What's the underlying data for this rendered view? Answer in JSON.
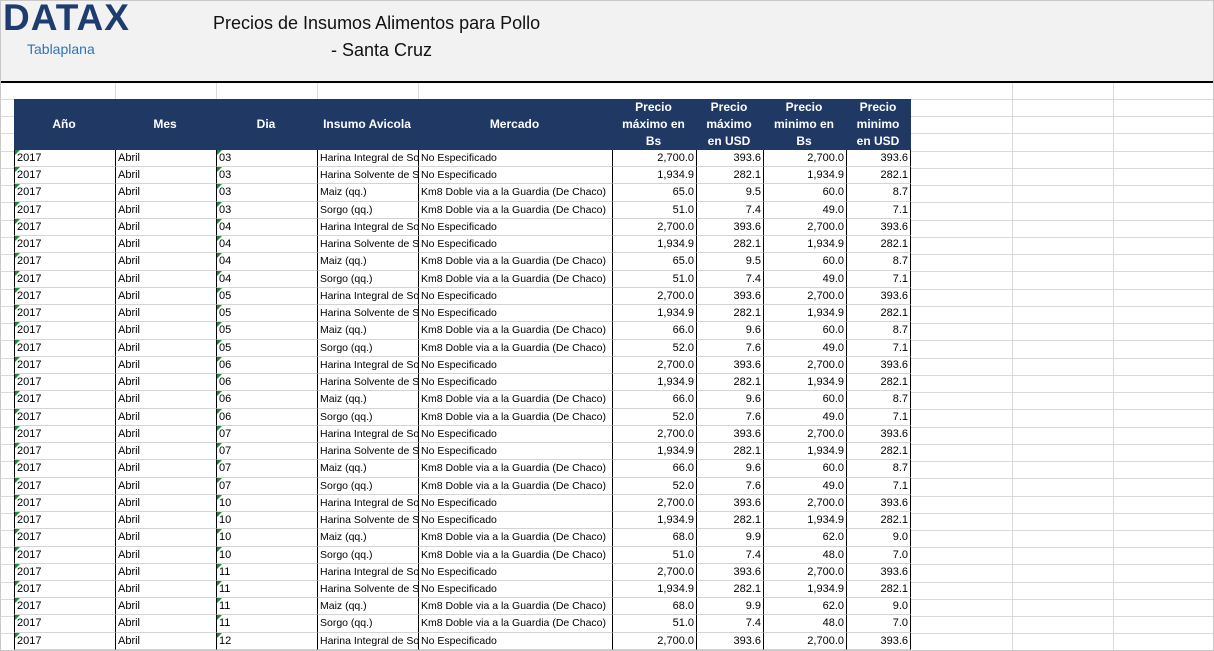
{
  "header": {
    "logo": "DATAX",
    "logo_subtitle": "Tablaplana",
    "title_line1": "Precios de Insumos Alimentos para Pollo",
    "title_line2": "- Santa Cruz"
  },
  "table": {
    "columns": [
      "Año",
      "Mes",
      "Dia",
      "Insumo Avicola",
      "Mercado",
      "Precio máximo en Bs",
      "Precio máximo en USD",
      "Precio minimo en Bs",
      "Precio minimo en USD"
    ],
    "rows": [
      [
        "2017",
        "Abril",
        "03",
        "Harina Integral de So",
        "No Especificado",
        "2,700.0",
        "393.6",
        "2,700.0",
        "393.6"
      ],
      [
        "2017",
        "Abril",
        "03",
        "Harina Solvente de S",
        "No Especificado",
        "1,934.9",
        "282.1",
        "1,934.9",
        "282.1"
      ],
      [
        "2017",
        "Abril",
        "03",
        "Maiz (qq.)",
        "Km8 Doble via a la Guardia (De Chaco)",
        "65.0",
        "9.5",
        "60.0",
        "8.7"
      ],
      [
        "2017",
        "Abril",
        "03",
        "Sorgo (qq.)",
        "Km8 Doble via a la Guardia (De Chaco)",
        "51.0",
        "7.4",
        "49.0",
        "7.1"
      ],
      [
        "2017",
        "Abril",
        "04",
        "Harina Integral de So",
        "No Especificado",
        "2,700.0",
        "393.6",
        "2,700.0",
        "393.6"
      ],
      [
        "2017",
        "Abril",
        "04",
        "Harina Solvente de S",
        "No Especificado",
        "1,934.9",
        "282.1",
        "1,934.9",
        "282.1"
      ],
      [
        "2017",
        "Abril",
        "04",
        "Maiz (qq.)",
        "Km8 Doble via a la Guardia (De Chaco)",
        "65.0",
        "9.5",
        "60.0",
        "8.7"
      ],
      [
        "2017",
        "Abril",
        "04",
        "Sorgo (qq.)",
        "Km8 Doble via a la Guardia (De Chaco)",
        "51.0",
        "7.4",
        "49.0",
        "7.1"
      ],
      [
        "2017",
        "Abril",
        "05",
        "Harina Integral de So",
        "No Especificado",
        "2,700.0",
        "393.6",
        "2,700.0",
        "393.6"
      ],
      [
        "2017",
        "Abril",
        "05",
        "Harina Solvente de S",
        "No Especificado",
        "1,934.9",
        "282.1",
        "1,934.9",
        "282.1"
      ],
      [
        "2017",
        "Abril",
        "05",
        "Maiz (qq.)",
        "Km8 Doble via a la Guardia (De Chaco)",
        "66.0",
        "9.6",
        "60.0",
        "8.7"
      ],
      [
        "2017",
        "Abril",
        "05",
        "Sorgo (qq.)",
        "Km8 Doble via a la Guardia (De Chaco)",
        "52.0",
        "7.6",
        "49.0",
        "7.1"
      ],
      [
        "2017",
        "Abril",
        "06",
        "Harina Integral de So",
        "No Especificado",
        "2,700.0",
        "393.6",
        "2,700.0",
        "393.6"
      ],
      [
        "2017",
        "Abril",
        "06",
        "Harina Solvente de S",
        "No Especificado",
        "1,934.9",
        "282.1",
        "1,934.9",
        "282.1"
      ],
      [
        "2017",
        "Abril",
        "06",
        "Maiz (qq.)",
        "Km8 Doble via a la Guardia (De Chaco)",
        "66.0",
        "9.6",
        "60.0",
        "8.7"
      ],
      [
        "2017",
        "Abril",
        "06",
        "Sorgo (qq.)",
        "Km8 Doble via a la Guardia (De Chaco)",
        "52.0",
        "7.6",
        "49.0",
        "7.1"
      ],
      [
        "2017",
        "Abril",
        "07",
        "Harina Integral de So",
        "No Especificado",
        "2,700.0",
        "393.6",
        "2,700.0",
        "393.6"
      ],
      [
        "2017",
        "Abril",
        "07",
        "Harina Solvente de S",
        "No Especificado",
        "1,934.9",
        "282.1",
        "1,934.9",
        "282.1"
      ],
      [
        "2017",
        "Abril",
        "07",
        "Maiz (qq.)",
        "Km8 Doble via a la Guardia (De Chaco)",
        "66.0",
        "9.6",
        "60.0",
        "8.7"
      ],
      [
        "2017",
        "Abril",
        "07",
        "Sorgo (qq.)",
        "Km8 Doble via a la Guardia (De Chaco)",
        "52.0",
        "7.6",
        "49.0",
        "7.1"
      ],
      [
        "2017",
        "Abril",
        "10",
        "Harina Integral de So",
        "No Especificado",
        "2,700.0",
        "393.6",
        "2,700.0",
        "393.6"
      ],
      [
        "2017",
        "Abril",
        "10",
        "Harina Solvente de S",
        "No Especificado",
        "1,934.9",
        "282.1",
        "1,934.9",
        "282.1"
      ],
      [
        "2017",
        "Abril",
        "10",
        "Maiz (qq.)",
        "Km8 Doble via a la Guardia (De Chaco)",
        "68.0",
        "9.9",
        "62.0",
        "9.0"
      ],
      [
        "2017",
        "Abril",
        "10",
        "Sorgo (qq.)",
        "Km8 Doble via a la Guardia (De Chaco)",
        "51.0",
        "7.4",
        "48.0",
        "7.0"
      ],
      [
        "2017",
        "Abril",
        "11",
        "Harina Integral de So",
        "No Especificado",
        "2,700.0",
        "393.6",
        "2,700.0",
        "393.6"
      ],
      [
        "2017",
        "Abril",
        "11",
        "Harina Solvente de S",
        "No Especificado",
        "1,934.9",
        "282.1",
        "1,934.9",
        "282.1"
      ],
      [
        "2017",
        "Abril",
        "11",
        "Maiz (qq.)",
        "Km8 Doble via a la Guardia (De Chaco)",
        "68.0",
        "9.9",
        "62.0",
        "9.0"
      ],
      [
        "2017",
        "Abril",
        "11",
        "Sorgo (qq.)",
        "Km8 Doble via a la Guardia (De Chaco)",
        "51.0",
        "7.4",
        "48.0",
        "7.0"
      ],
      [
        "2017",
        "Abril",
        "12",
        "Harina Integral de So",
        "No Especificado",
        "2,700.0",
        "393.6",
        "2,700.0",
        "393.6"
      ]
    ]
  }
}
